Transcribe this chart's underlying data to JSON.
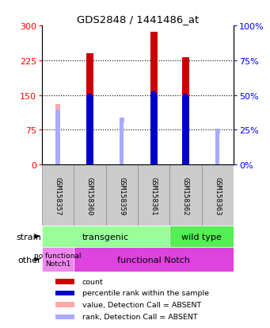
{
  "title": "GDS2848 / 1441486_at",
  "samples": [
    "GSM158357",
    "GSM158360",
    "GSM158359",
    "GSM158361",
    "GSM158362",
    "GSM158363"
  ],
  "count_values": [
    0,
    240,
    0,
    287,
    232,
    0
  ],
  "rank_values": [
    0,
    49,
    0,
    51,
    49,
    0
  ],
  "value_absent": [
    130,
    0,
    90,
    0,
    0,
    65
  ],
  "rank_absent": [
    38,
    0,
    32,
    0,
    0,
    24
  ],
  "count_color": "#cc0000",
  "rank_color": "#0000cc",
  "value_absent_color": "#ffaaaa",
  "rank_absent_color": "#aaaaff",
  "ylim_left": [
    0,
    300
  ],
  "ylim_right": [
    0,
    100
  ],
  "yticks_left": [
    0,
    75,
    150,
    225,
    300
  ],
  "yticks_right": [
    0,
    25,
    50,
    75,
    100
  ],
  "strain_transgenic_label": "transgenic",
  "strain_wildtype_label": "wild type",
  "strain_color_transgenic": "#99ff99",
  "strain_color_wildtype": "#55ee55",
  "other_nofunctional_label": "no functional\nNotch1",
  "other_functional_label": "functional Notch",
  "other_color_nofunctional": "#ee88ee",
  "other_color_functional": "#dd44dd",
  "legend_items": [
    {
      "label": "count",
      "color": "#cc0000"
    },
    {
      "label": "percentile rank within the sample",
      "color": "#0000cc"
    },
    {
      "label": "value, Detection Call = ABSENT",
      "color": "#ffaaaa"
    },
    {
      "label": "rank, Detection Call = ABSENT",
      "color": "#aaaaff"
    }
  ]
}
